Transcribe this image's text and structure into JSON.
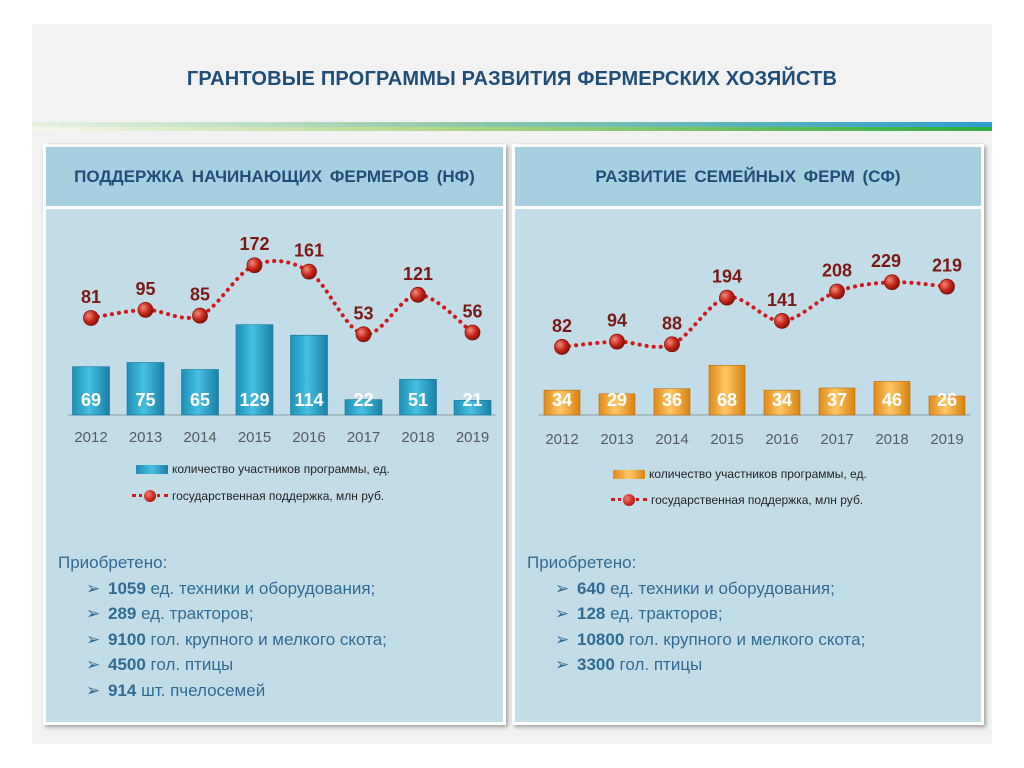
{
  "title": "ГРАНТОВЫЕ ПРОГРАММЫ РАЗВИТИЯ ФЕРМЕРСКИХ ХОЗЯЙСТВ",
  "colors": {
    "title": "#1f4e79",
    "bar_left": "#2ba6cb",
    "bar_right": "#f0a030",
    "line": "#d21818",
    "marker": "#c8281c",
    "point_label": "#7b1a14"
  },
  "left": {
    "header": "ПОДДЕРЖКА НАЧИНАЮЩИХ ФЕРМЕРОВ (НФ)",
    "legend": {
      "bars": "количество участников программы, ед.",
      "line": "государственная поддержка, млн руб."
    },
    "acquired_title": "Приобретено:",
    "acquired": [
      {
        "num": "1059",
        "text": " ед. техники и оборудования;"
      },
      {
        "num": "289",
        "text": " ед. тракторов;"
      },
      {
        "num": "9100",
        "text": " гол. крупного и мелкого скота;"
      },
      {
        "num": "4500",
        "text": " гол. птицы"
      },
      {
        "num": "914",
        "text": " шт. пчелосемей"
      }
    ]
  },
  "right": {
    "header": "РАЗВИТИЕ СЕМЕЙНЫХ ФЕРМ (СФ)",
    "legend": {
      "bars": "количество участников программы, ед.",
      "line": "государственная поддержка, млн руб."
    },
    "acquired_title": "Приобретено:",
    "acquired": [
      {
        "num": "640",
        "text": " ед. техники и оборудования;"
      },
      {
        "num": "128",
        "text": " ед. тракторов;"
      },
      {
        "num": "10800",
        "text": " гол. крупного и мелкого скота;"
      },
      {
        "num": "3300",
        "text": " гол. птицы"
      }
    ]
  },
  "chart_data": [
    {
      "type": "bar",
      "categories": [
        "2012",
        "2013",
        "2014",
        "2015",
        "2016",
        "2017",
        "2018",
        "2019"
      ],
      "series": [
        {
          "name": "количество участников программы, ед.",
          "type": "bar",
          "values": [
            69,
            75,
            65,
            129,
            114,
            22,
            51,
            21
          ]
        },
        {
          "name": "государственная поддержка, млн руб.",
          "type": "line",
          "values": [
            81,
            95,
            85,
            172,
            161,
            53,
            121,
            56
          ]
        }
      ]
    },
    {
      "type": "bar",
      "categories": [
        "2012",
        "2013",
        "2014",
        "2015",
        "2016",
        "2017",
        "2018",
        "2019"
      ],
      "series": [
        {
          "name": "количество участников программы, ед.",
          "type": "bar",
          "values": [
            34,
            29,
            36,
            68,
            34,
            37,
            46,
            26
          ]
        },
        {
          "name": "государственная поддержка, млн руб.",
          "type": "line",
          "values": [
            82,
            94,
            88,
            194,
            141,
            208,
            229,
            219
          ]
        }
      ]
    }
  ]
}
